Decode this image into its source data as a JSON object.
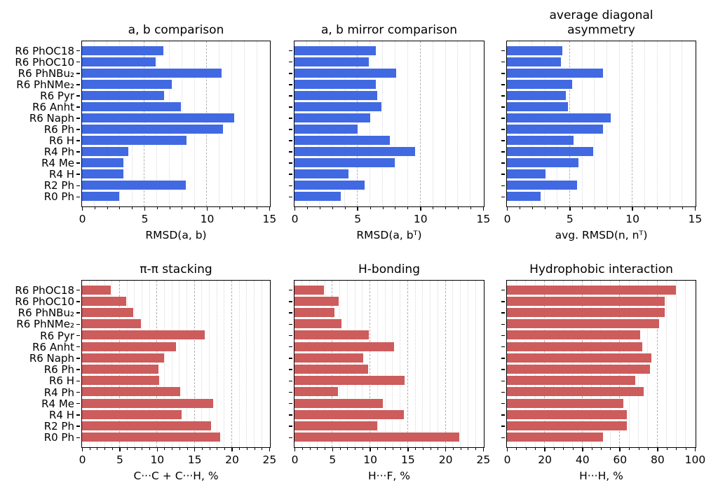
{
  "figure": {
    "background": "#ffffff"
  },
  "colors": {
    "blue_bar": "#4169e1",
    "red_bar": "#cd5c5c",
    "axis": "#000000",
    "grid_major": "#b2b2b2",
    "grid_minor": "#d7d7d7"
  },
  "categories": [
    "R6 PhOC18",
    "R6 PhOC10",
    "R6 PhNBu₂",
    "R6 PhNMe₂",
    "R6 Pyr",
    "R6 Anht",
    "R6 Naph",
    "R6 Ph",
    "R6 H",
    "R4 Ph",
    "R4 Me",
    "R4 H",
    "R2 Ph",
    "R0 Ph"
  ],
  "chart_data": [
    {
      "type": "bar",
      "orientation": "horizontal",
      "title": "a, b comparison",
      "xlabel": "RMSD(a, b)",
      "xlim": [
        0,
        15
      ],
      "xticks": [
        0,
        5,
        10,
        15
      ],
      "minor_step": 1,
      "grid": "major-dashed, minor-dotted",
      "color": "#4169e1",
      "categories": [
        "R6 PhOC18",
        "R6 PhOC10",
        "R6 PhNBu₂",
        "R6 PhNMe₂",
        "R6 Pyr",
        "R6 Anht",
        "R6 Naph",
        "R6 Ph",
        "R6 H",
        "R4 Ph",
        "R4 Me",
        "R4 H",
        "R2 Ph",
        "R0 Ph"
      ],
      "values": [
        6.5,
        5.9,
        11.2,
        7.2,
        6.6,
        7.9,
        12.2,
        11.3,
        8.4,
        3.7,
        3.3,
        3.3,
        8.3,
        3.0
      ]
    },
    {
      "type": "bar",
      "orientation": "horizontal",
      "title": "a, b mirror comparison",
      "xlabel": "RMSD(a, bᵀ)",
      "xlim": [
        0,
        15
      ],
      "xticks": [
        0,
        5,
        10,
        15
      ],
      "minor_step": 1,
      "grid": "major-dashed, minor-dotted",
      "color": "#4169e1",
      "categories": [
        "R6 PhOC18",
        "R6 PhOC10",
        "R6 PhNBu₂",
        "R6 PhNMe₂",
        "R6 Pyr",
        "R6 Anht",
        "R6 Naph",
        "R6 Ph",
        "R6 H",
        "R4 Ph",
        "R4 Me",
        "R4 H",
        "R2 Ph",
        "R0 Ph"
      ],
      "values": [
        6.5,
        5.9,
        8.1,
        6.5,
        6.6,
        6.9,
        6.0,
        5.0,
        7.6,
        9.6,
        8.0,
        4.3,
        5.6,
        3.7
      ]
    },
    {
      "type": "bar",
      "orientation": "horizontal",
      "title": "average diagonal\nasymmetry",
      "xlabel": "avg. RMSD(n, nᵀ)",
      "xlim": [
        0,
        15
      ],
      "xticks": [
        0,
        5,
        10,
        15
      ],
      "minor_step": 1,
      "grid": "major-dashed, minor-dotted",
      "color": "#4169e1",
      "categories": [
        "R6 PhOC18",
        "R6 PhOC10",
        "R6 PhNBu₂",
        "R6 PhNMe₂",
        "R6 Pyr",
        "R6 Anht",
        "R6 Naph",
        "R6 Ph",
        "R6 H",
        "R4 Ph",
        "R4 Me",
        "R4 H",
        "R2 Ph",
        "R0 Ph"
      ],
      "values": [
        4.4,
        4.3,
        7.7,
        5.2,
        4.7,
        4.9,
        8.3,
        7.7,
        5.3,
        6.9,
        5.7,
        3.1,
        5.6,
        2.7
      ]
    },
    {
      "type": "bar",
      "orientation": "horizontal",
      "title": "π-π stacking",
      "xlabel": "C···C + C···H, %",
      "xlim": [
        0,
        25
      ],
      "xticks": [
        0,
        5,
        10,
        15,
        20,
        25
      ],
      "minor_step": 1,
      "grid": "major-dashed, minor-dotted",
      "color": "#cd5c5c",
      "categories": [
        "R6 PhOC18",
        "R6 PhOC10",
        "R6 PhNBu₂",
        "R6 PhNMe₂",
        "R6 Pyr",
        "R6 Anht",
        "R6 Naph",
        "R6 Ph",
        "R6 H",
        "R4 Ph",
        "R4 Me",
        "R4 H",
        "R2 Ph",
        "R0 Ph"
      ],
      "values": [
        3.8,
        5.9,
        6.8,
        7.9,
        16.4,
        12.6,
        11.0,
        10.2,
        10.3,
        13.1,
        17.5,
        13.3,
        17.2,
        18.5
      ]
    },
    {
      "type": "bar",
      "orientation": "horizontal",
      "title": "H-bonding",
      "xlabel": "H···F, %",
      "xlim": [
        0,
        25
      ],
      "xticks": [
        0,
        5,
        10,
        15,
        20,
        25
      ],
      "minor_step": 1,
      "grid": "major-dashed, minor-dotted",
      "color": "#cd5c5c",
      "categories": [
        "R6 PhOC18",
        "R6 PhOC10",
        "R6 PhNBu₂",
        "R6 PhNMe₂",
        "R6 Pyr",
        "R6 Anht",
        "R6 Naph",
        "R6 Ph",
        "R6 H",
        "R4 Ph",
        "R4 Me",
        "R4 H",
        "R2 Ph",
        "R0 Ph"
      ],
      "values": [
        3.9,
        5.9,
        5.3,
        6.2,
        9.9,
        13.2,
        9.1,
        9.8,
        14.6,
        5.8,
        11.7,
        14.5,
        11.0,
        21.9
      ]
    },
    {
      "type": "bar",
      "orientation": "horizontal",
      "title": "Hydrophobic interaction",
      "xlabel": "H···H, %",
      "xlim": [
        0,
        100
      ],
      "xticks": [
        0,
        20,
        40,
        60,
        80,
        100
      ],
      "minor_step": 5,
      "grid": "major-dashed, minor-dotted",
      "color": "#cd5c5c",
      "categories": [
        "R6 PhOC18",
        "R6 PhOC10",
        "R6 PhNBu₂",
        "R6 PhNMe₂",
        "R6 Pyr",
        "R6 Anht",
        "R6 Naph",
        "R6 Ph",
        "R6 H",
        "R4 Ph",
        "R4 Me",
        "R4 H",
        "R2 Ph",
        "R0 Ph"
      ],
      "values": [
        90,
        84,
        84,
        81,
        71,
        72,
        77,
        76,
        68.5,
        73,
        62,
        64,
        64,
        51
      ]
    }
  ]
}
